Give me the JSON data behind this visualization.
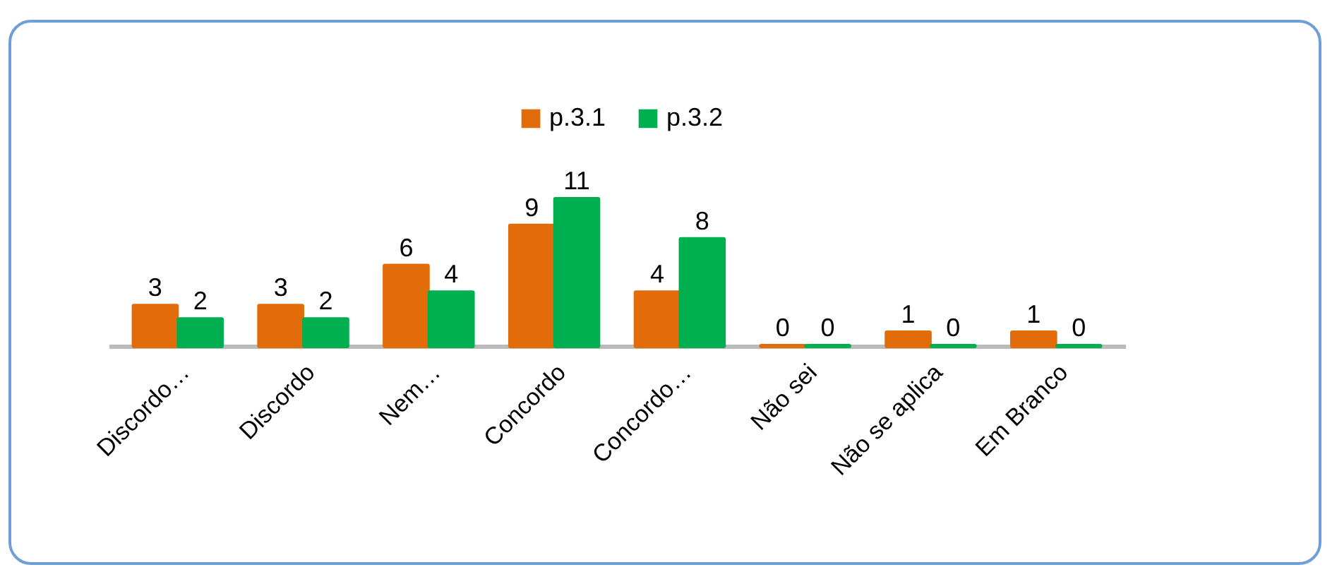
{
  "chart_data": {
    "type": "bar",
    "categories": [
      "Discordo…",
      "Discordo",
      "Nem…",
      "Concordo",
      "Concordo…",
      "Não sei",
      "Não se aplica",
      "Em Branco"
    ],
    "series": [
      {
        "name": "p.3.1",
        "color": "#e36c0a",
        "values": [
          3,
          3,
          6,
          9,
          4,
          0,
          1,
          1
        ]
      },
      {
        "name": "p.3.2",
        "color": "#00b050",
        "values": [
          2,
          2,
          4,
          11,
          8,
          0,
          0,
          0
        ]
      }
    ],
    "data_labels": true,
    "legend": "top",
    "grid": false
  }
}
